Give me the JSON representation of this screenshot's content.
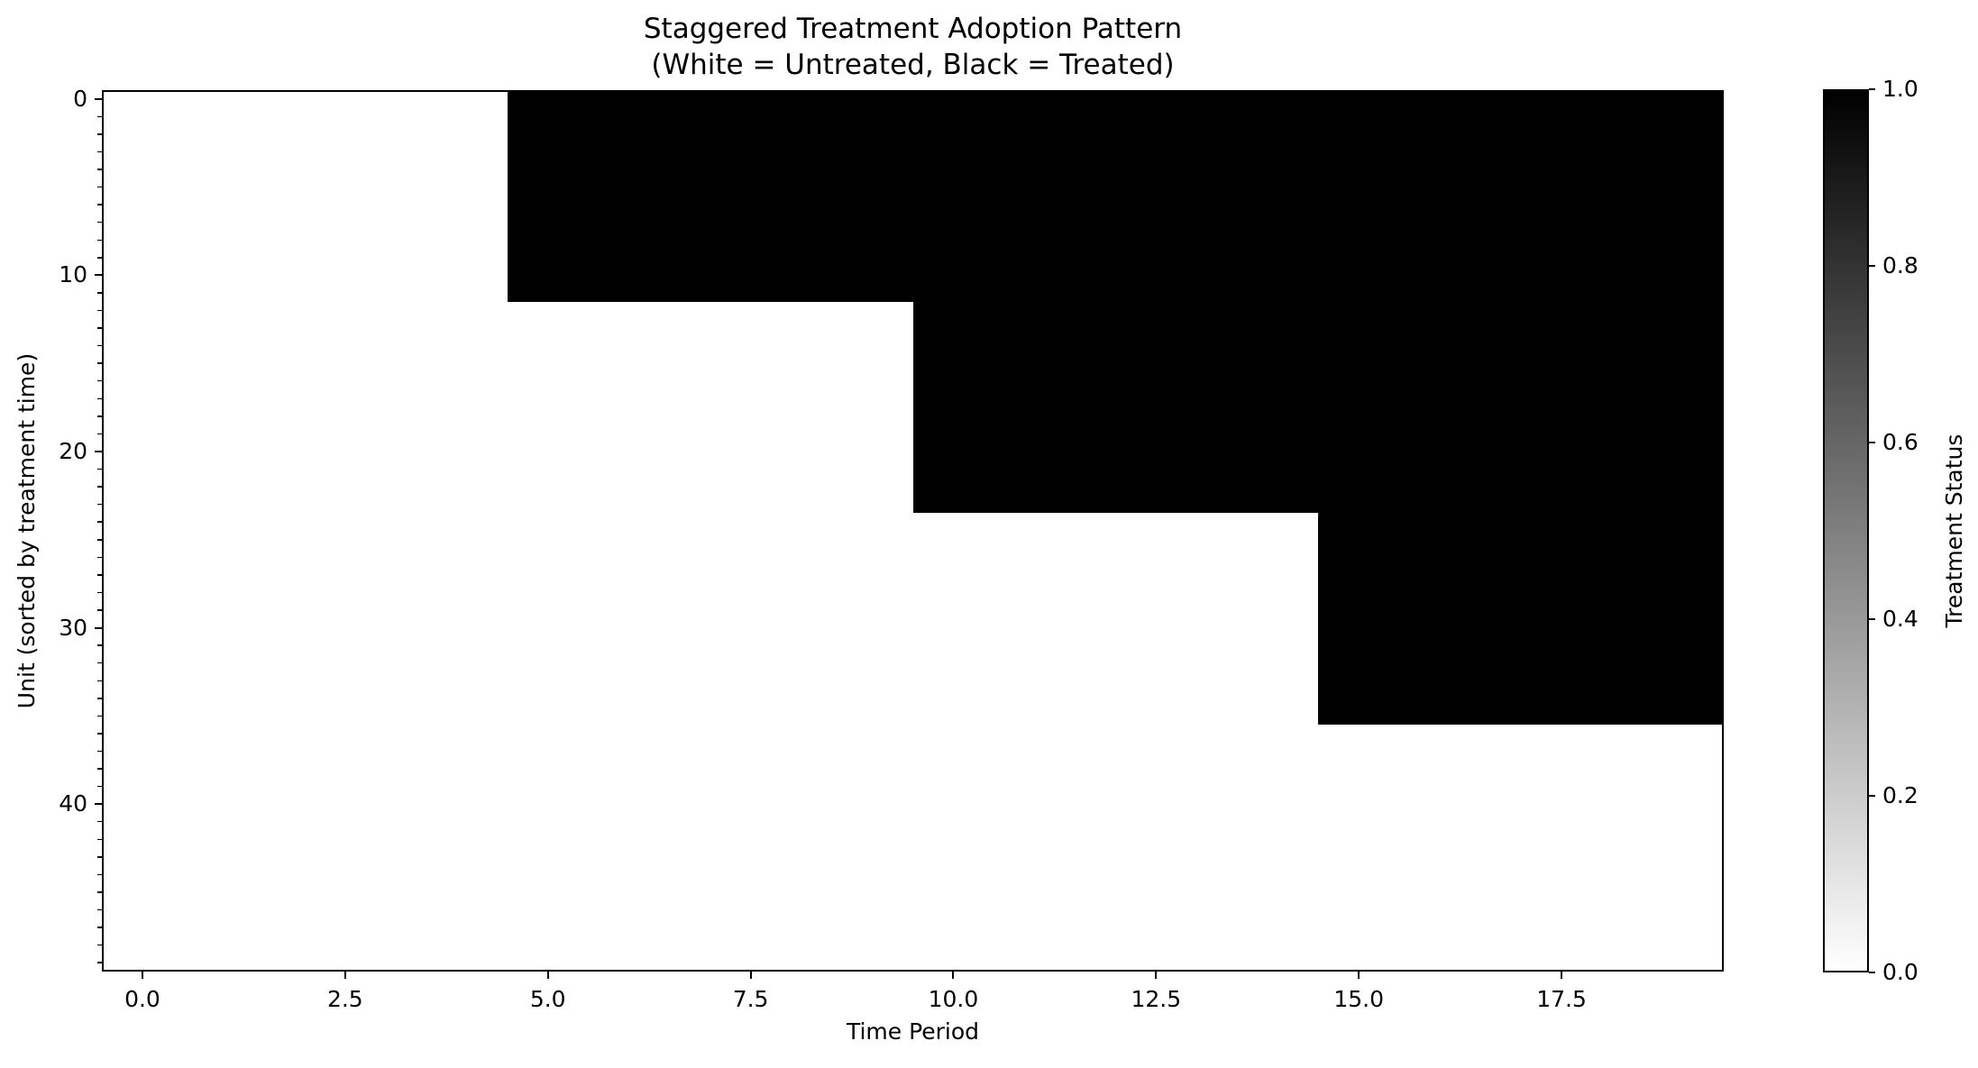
{
  "chart_data": {
    "type": "heatmap",
    "title": "Staggered Treatment Adoption Pattern",
    "subtitle": "(White = Untreated, Black = Treated)",
    "xlabel": "Time Period",
    "ylabel": "Unit (sorted by treatment time)",
    "colorbar_label": "Treatment Status",
    "n_units": 50,
    "n_periods": 20,
    "x_extent": [
      -0.5,
      19.5
    ],
    "y_extent": [
      -0.5,
      49.5
    ],
    "x_ticks": [
      0.0,
      2.5,
      5.0,
      7.5,
      10.0,
      12.5,
      15.0,
      17.5
    ],
    "x_tick_labels": [
      "0.0",
      "2.5",
      "5.0",
      "7.5",
      "10.0",
      "12.5",
      "15.0",
      "17.5"
    ],
    "y_ticks": [
      0,
      10,
      20,
      30,
      40
    ],
    "y_tick_labels": [
      "0",
      "10",
      "20",
      "30",
      "40"
    ],
    "y_minor_tick_step": 1,
    "colorbar_ticks": [
      0.0,
      0.2,
      0.4,
      0.6,
      0.8,
      1.0
    ],
    "colorbar_tick_labels": [
      "0.0",
      "0.2",
      "0.4",
      "0.6",
      "0.8",
      "1.0"
    ],
    "colors": {
      "untreated": "#ffffff",
      "treated": "#000000",
      "background": "#ffffff"
    },
    "legend_position": "right-colorbar",
    "grid": false,
    "treatment_groups": [
      {
        "rows_start": 0,
        "rows_end": 11,
        "adoption_period": 5
      },
      {
        "rows_start": 12,
        "rows_end": 23,
        "adoption_period": 10
      },
      {
        "rows_start": 24,
        "rows_end": 35,
        "adoption_period": 15
      },
      {
        "rows_start": 36,
        "rows_end": 49,
        "adoption_period": null
      }
    ]
  }
}
